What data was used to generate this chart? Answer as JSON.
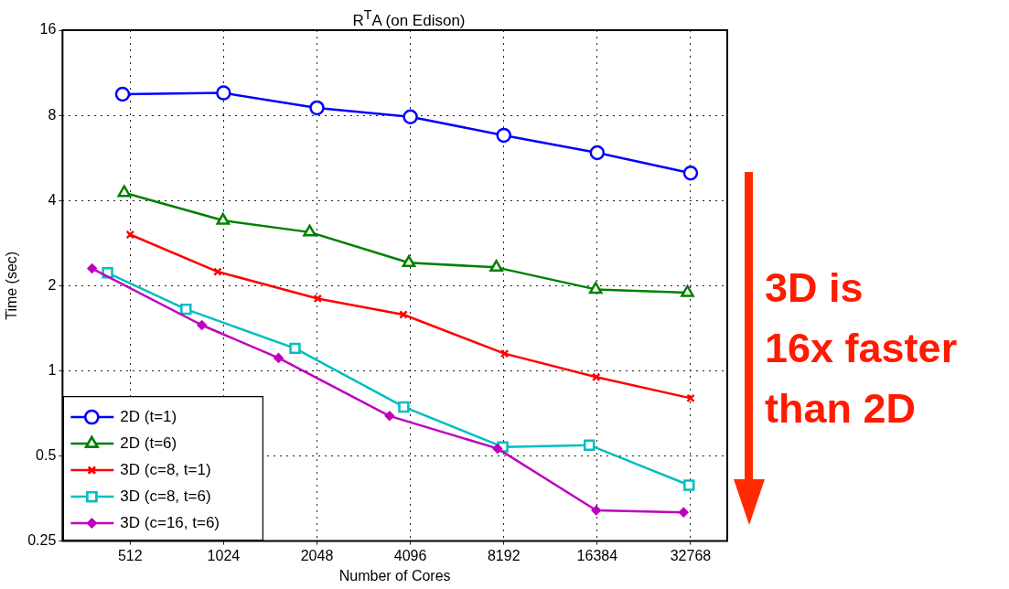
{
  "chart_data": {
    "type": "line",
    "title": "R$^{T}$A (on Edison)",
    "xlabel": "Number of Cores",
    "ylabel": "Time (sec)",
    "log": "xy",
    "grid": true,
    "legend": "bottom left",
    "line_style": "solid",
    "xlim": [
      310,
      43000
    ],
    "xticks": [
      512,
      1024,
      2048,
      4096,
      8192,
      16384,
      32768
    ],
    "ylim": [
      0.25,
      16
    ],
    "yticks": [
      0.25,
      0.5,
      1,
      2,
      4,
      8,
      16
    ],
    "series": [
      {
        "name": "2D (t=1)",
        "color": "#0000ff",
        "marker": "circle",
        "x": [
          484,
          1024,
          2048,
          4096,
          8192,
          16384,
          32768
        ],
        "values": [
          9.5,
          9.6,
          8.5,
          7.9,
          6.8,
          5.9,
          5.0
        ]
      },
      {
        "name": "2D (t=6)",
        "color": "#008000",
        "marker": "triangle",
        "x": [
          490,
          1020,
          1940,
          4050,
          7750,
          16200,
          32000
        ],
        "values": [
          4.26,
          3.4,
          3.09,
          2.41,
          2.32,
          1.94,
          1.89
        ]
      },
      {
        "name": "3D (c=8, t=1)",
        "color": "#ff0000",
        "marker": "cross",
        "x": [
          512,
          980,
          2060,
          3890,
          8240,
          16260,
          32768
        ],
        "values": [
          3.03,
          2.24,
          1.8,
          1.58,
          1.15,
          0.95,
          0.8
        ]
      },
      {
        "name": "3D (c=8, t=6)",
        "color": "#00bfbf",
        "marker": "square",
        "x": [
          433,
          775,
          1740,
          3900,
          8130,
          15450,
          32400
        ],
        "values": [
          2.22,
          1.65,
          1.2,
          0.745,
          0.538,
          0.546,
          0.394
        ]
      },
      {
        "name": "3D (c=16, t=6)",
        "color": "#bf00bf",
        "marker": "diamond",
        "x": [
          386,
          872,
          1540,
          3510,
          7820,
          16260,
          31100
        ],
        "values": [
          2.3,
          1.45,
          1.11,
          0.692,
          0.531,
          0.321,
          0.316
        ]
      }
    ],
    "annotations": [
      "3D is\n16x faster\nthan 2D"
    ]
  }
}
